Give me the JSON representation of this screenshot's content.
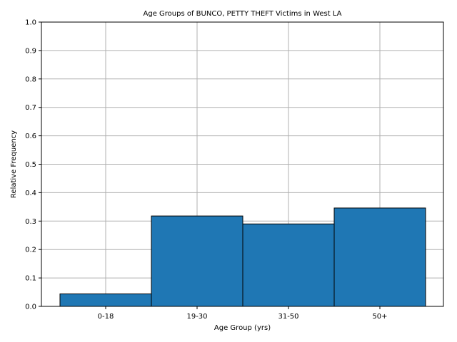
{
  "chart_data": {
    "type": "bar",
    "title": "Age Groups of BUNCO, PETTY THEFT Victims in West LA",
    "xlabel": "Age Group (yrs)",
    "ylabel": "Relative Frequency",
    "categories": [
      "0-18",
      "19-30",
      "31-50",
      "50+"
    ],
    "values": [
      0.044,
      0.318,
      0.29,
      0.346
    ],
    "ylim": [
      0,
      1.0
    ],
    "yticks": [
      "0.0",
      "0.1",
      "0.2",
      "0.3",
      "0.4",
      "0.5",
      "0.6",
      "0.7",
      "0.8",
      "0.9",
      "1.0"
    ],
    "grid": true,
    "bar_color": "#1f77b4",
    "edge_color": "#000000",
    "grid_color": "#b0b0b0"
  }
}
